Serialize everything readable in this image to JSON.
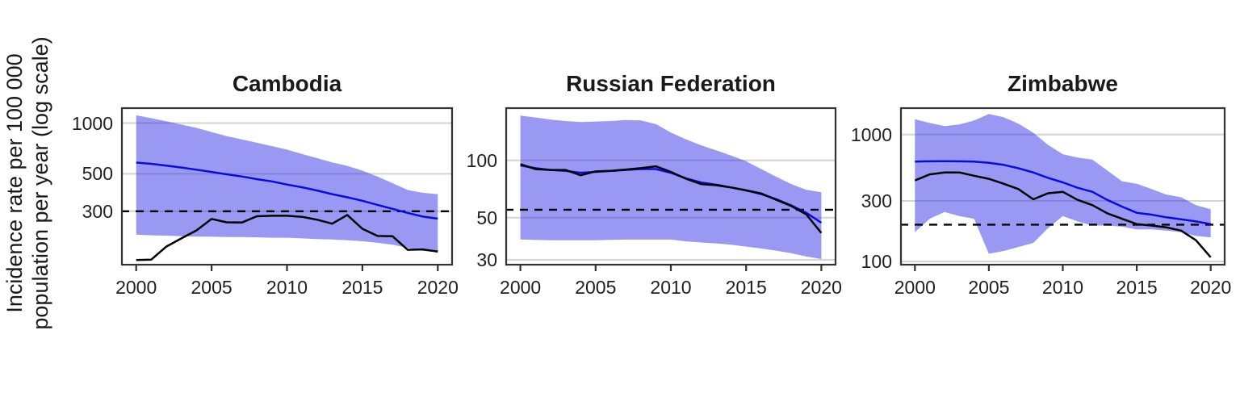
{
  "y_axis_label": "Incidence rate per 100 000\npopulation per year (log scale)",
  "colors": {
    "band": "rgba(51,51,231,0.5)",
    "estimate_line": "#0b0bdb",
    "notifications_line": "#000000",
    "dashed_line": "#000000",
    "gridline": "#d3d3d3",
    "border": "#333333",
    "tick_mark": "#333333",
    "title_text": "#1a1a1a",
    "tick_text": "#1f1f1f"
  },
  "chart_data": [
    {
      "type": "line",
      "title": "Cambodia",
      "yscale": "log",
      "xlim": [
        1999,
        2021
      ],
      "ylim": [
        143,
        1240
      ],
      "xticks": [
        2000,
        2005,
        2010,
        2015,
        2020
      ],
      "yticks": [
        1000,
        500,
        300
      ],
      "dashed_hline": 300,
      "x": [
        2000,
        2001,
        2002,
        2003,
        2004,
        2005,
        2006,
        2007,
        2008,
        2009,
        2010,
        2011,
        2012,
        2013,
        2014,
        2015,
        2016,
        2017,
        2018,
        2019,
        2020
      ],
      "band": {
        "name": "uncertainty-interval",
        "upper": [
          1112,
          1068,
          1026,
          980,
          936,
          885,
          837,
          800,
          764,
          730,
          696,
          655,
          619,
          585,
          558,
          522,
          482,
          440,
          401,
          386,
          379
        ],
        "lower": [
          218,
          216,
          215,
          213,
          212,
          212,
          211,
          211,
          210,
          209,
          209,
          207,
          205,
          204,
          202,
          199,
          195,
          190,
          182,
          175,
          172
        ]
      },
      "series": [
        {
          "name": "estimated-incidence",
          "values": [
            583,
            573,
            559,
            545,
            529,
            513,
            497,
            482,
            465,
            451,
            432,
            416,
            398,
            379,
            363,
            346,
            327,
            310,
            293,
            279,
            271
          ]
        },
        {
          "name": "notifications",
          "values": [
            154,
            155,
            185,
            207,
            231,
            270,
            258,
            257,
            280,
            282,
            282,
            278,
            267,
            253,
            285,
            236,
            214,
            213,
            177,
            178,
            173
          ]
        }
      ]
    },
    {
      "type": "line",
      "title": "Russian Federation",
      "yscale": "log",
      "xlim": [
        1999,
        2021
      ],
      "ylim": [
        28,
        190
      ],
      "xticks": [
        2000,
        2005,
        2010,
        2015,
        2020
      ],
      "yticks": [
        100,
        50,
        30
      ],
      "dashed_hline": 55,
      "x": [
        2000,
        2001,
        2002,
        2003,
        2004,
        2005,
        2006,
        2007,
        2008,
        2009,
        2010,
        2011,
        2012,
        2013,
        2014,
        2015,
        2016,
        2017,
        2018,
        2019,
        2020
      ],
      "band": {
        "name": "uncertainty-interval",
        "upper": [
          172,
          168,
          164,
          161,
          159,
          160,
          161,
          163,
          162,
          155,
          140,
          129,
          120,
          113,
          106,
          99,
          90,
          82,
          75,
          70,
          68
        ],
        "lower": [
          38.4,
          38.2,
          38,
          38,
          38,
          38,
          38.2,
          38.3,
          38.3,
          38.3,
          38.3,
          37.5,
          37,
          36.6,
          36,
          35.2,
          34.4,
          33.5,
          32.5,
          31.2,
          30.3
        ]
      },
      "series": [
        {
          "name": "estimated-incidence",
          "values": [
            94,
            91,
            89,
            88,
            86,
            87,
            88,
            89,
            90,
            90,
            86,
            80.5,
            76.5,
            74.5,
            72,
            69.5,
            66.5,
            62.5,
            58,
            53,
            47
          ]
        },
        {
          "name": "notifications",
          "values": [
            95.5,
            90,
            89,
            89,
            83.5,
            87.5,
            88,
            89.5,
            91,
            93,
            87,
            80,
            75,
            74,
            72,
            69.5,
            67,
            62,
            57.5,
            52,
            41.5
          ]
        }
      ]
    },
    {
      "type": "line",
      "title": "Zimbabwe",
      "yscale": "log",
      "xlim": [
        1999,
        2021
      ],
      "ylim": [
        93,
        1640
      ],
      "xticks": [
        2000,
        2005,
        2010,
        2015,
        2020
      ],
      "yticks": [
        1000,
        300,
        100
      ],
      "dashed_hline": 195,
      "x": [
        2000,
        2001,
        2002,
        2003,
        2004,
        2005,
        2006,
        2007,
        2008,
        2009,
        2010,
        2011,
        2012,
        2013,
        2014,
        2015,
        2016,
        2017,
        2018,
        2019,
        2020
      ],
      "band": {
        "name": "uncertainty-interval",
        "upper": [
          1321,
          1235,
          1167,
          1200,
          1290,
          1455,
          1370,
          1220,
          1034,
          830,
          700,
          659,
          635,
          522,
          429,
          410,
          372,
          337,
          321,
          278,
          258
        ],
        "lower": [
          170,
          217,
          245,
          228,
          217,
          115,
          121,
          130,
          140,
          183,
          228,
          207,
          192,
          192,
          188,
          179,
          179,
          175,
          170,
          159,
          155
        ]
      },
      "series": [
        {
          "name": "estimated-incidence",
          "values": [
            613,
            616,
            617,
            616,
            612,
            599,
            577,
            543,
            503,
            456,
            420,
            381,
            354,
            306,
            271,
            242,
            234,
            223,
            215,
            207,
            197
          ]
        },
        {
          "name": "notifications",
          "values": [
            435,
            486,
            503,
            503,
            474,
            448,
            410,
            372,
            309,
            345,
            354,
            306,
            278,
            240,
            217,
            197,
            192,
            186,
            175,
            147,
            108
          ]
        }
      ]
    }
  ]
}
